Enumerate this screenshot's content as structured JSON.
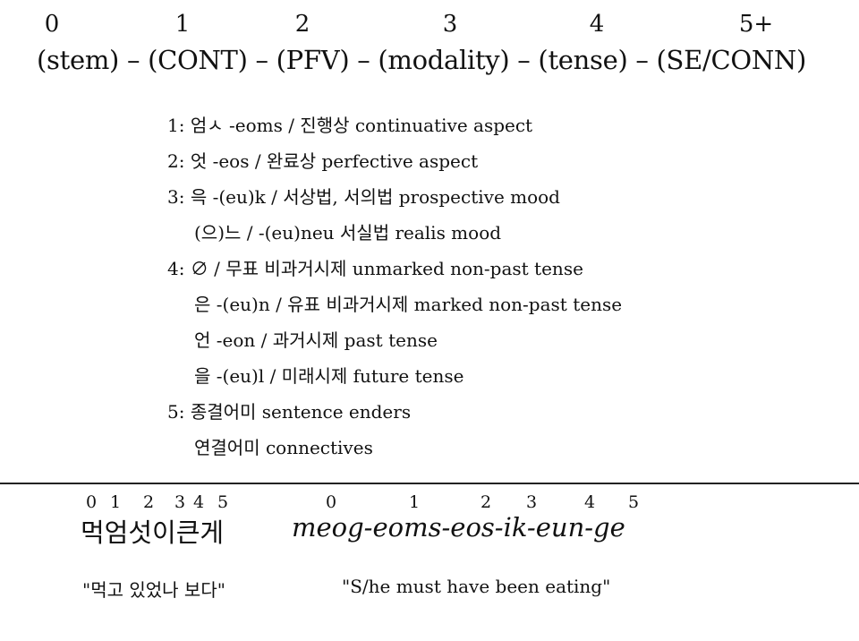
{
  "slot_numbers": [
    "0",
    "1",
    "2",
    "3",
    "4",
    "5+"
  ],
  "template": "(stem) – (CONT) – (PFV) – (modality) – (tense) – (SE/CONN)",
  "items": [
    "1: 엄ㅅ -eoms / 진행상 continuative aspect",
    "2: 엇 -eos / 완료상 perfective aspect",
    "3: 윽 -(eu)k / 서상법, 서의법 prospective mood",
    "(으)느 / -(eu)neu 서실법 realis mood",
    "4: ∅ / 무표 비과거시제 unmarked non-past tense",
    "은 -(eu)n / 유표 비과거시제 marked non-past tense",
    "언 -eon / 과거시제 past tense",
    "을 -(eu)l / 미래시제 future tense",
    "5: 종결어미 sentence enders",
    "연결어미 connectives"
  ],
  "example": {
    "korean_digits": [
      "0",
      "1",
      "2",
      "3",
      "4",
      "5"
    ],
    "korean_word": "먹엄섯이큰게",
    "roman_digits": [
      "0",
      "1",
      "2",
      "3",
      "4",
      "5"
    ],
    "romanization": "meog-eoms-eos-ik-eun-ge",
    "korean_gloss": "\"먹고 있었나 보다\"",
    "english_gloss": "\"S/he must have been eating\""
  }
}
